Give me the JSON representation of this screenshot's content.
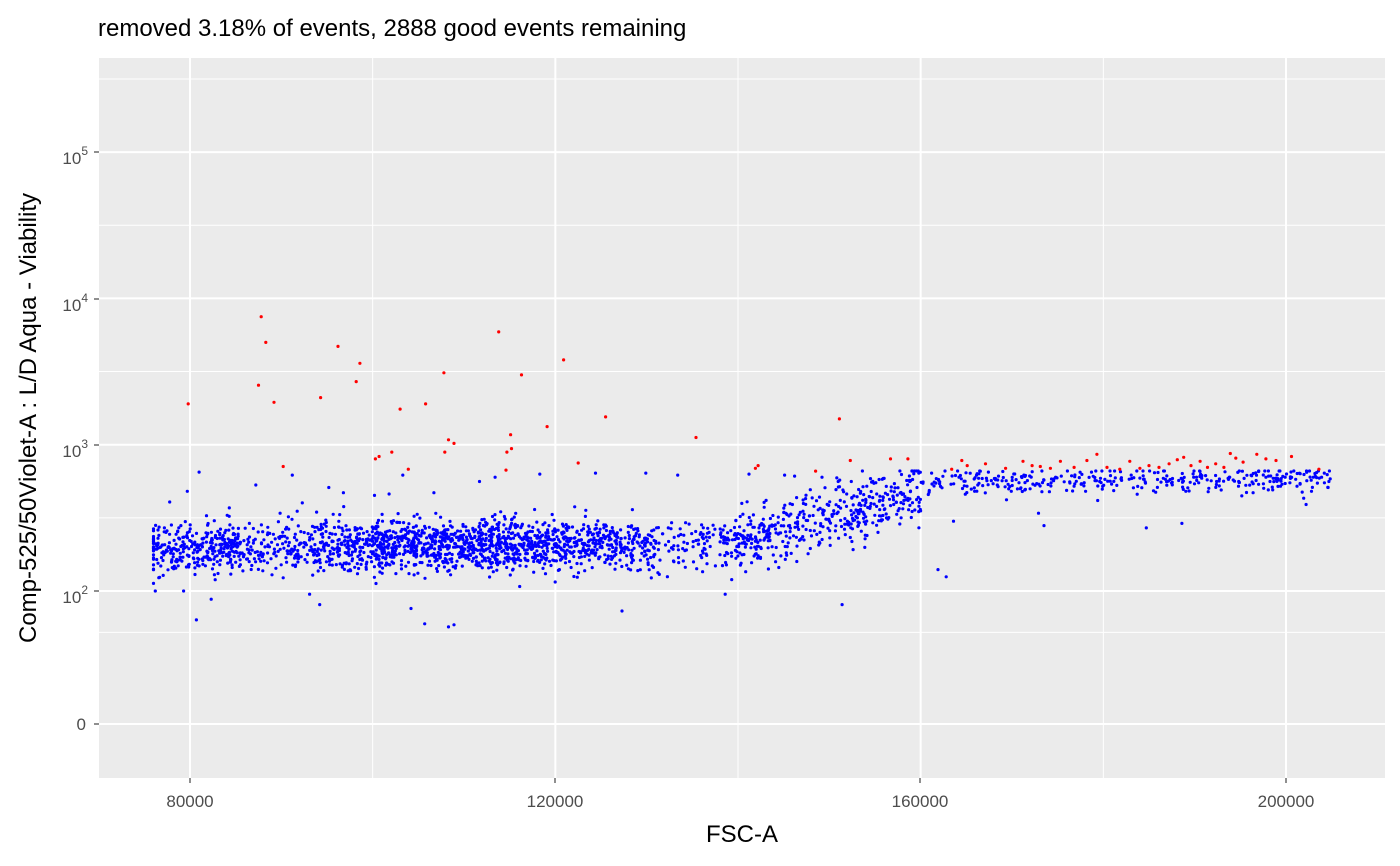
{
  "chart_data": {
    "type": "scatter",
    "title": "removed 3.18% of events, 2888 good events remaining",
    "xlabel": "FSC-A",
    "ylabel": "Comp-525/50Violet-A : L/D Aqua - Viability",
    "x_ticks": [
      "80000",
      "120000",
      "160000",
      "200000"
    ],
    "y_ticks": [
      {
        "label": "0",
        "base": "",
        "exp": ""
      },
      {
        "label": "10",
        "base": "10",
        "exp": "2"
      },
      {
        "label": "10",
        "base": "10",
        "exp": "3"
      },
      {
        "label": "10",
        "base": "10",
        "exp": "4"
      },
      {
        "label": "10",
        "base": "10",
        "exp": "5"
      }
    ],
    "x_range": [
      70000,
      210000
    ],
    "y_scale": "logicle (0, 10^2 … 10^5)",
    "grid": true,
    "legend": "none",
    "colors": {
      "panel": "#ebebeb",
      "grid": "#ffffff",
      "good": "#0000ff",
      "removed": "#ff0000"
    },
    "series": [
      {
        "status": "removed",
        "color": "#ff0000",
        "points": [
          [
            79800,
            1900
          ],
          [
            87800,
            7500
          ],
          [
            88300,
            5000
          ],
          [
            87500,
            2550
          ],
          [
            89200,
            1950
          ],
          [
            90200,
            710
          ],
          [
            94300,
            2100
          ],
          [
            96200,
            4700
          ],
          [
            98200,
            2700
          ],
          [
            98600,
            3600
          ],
          [
            100300,
            800
          ],
          [
            100700,
            830
          ],
          [
            102100,
            890
          ],
          [
            103000,
            1750
          ],
          [
            103900,
            680
          ],
          [
            105800,
            1900
          ],
          [
            107800,
            3100
          ],
          [
            107900,
            890
          ],
          [
            108300,
            1080
          ],
          [
            108900,
            1020
          ],
          [
            113800,
            5900
          ],
          [
            114600,
            670
          ],
          [
            114700,
            890
          ],
          [
            115200,
            940
          ],
          [
            115100,
            1170
          ],
          [
            116300,
            3000
          ],
          [
            119100,
            1330
          ],
          [
            120900,
            3800
          ],
          [
            122500,
            750
          ],
          [
            125500,
            1550
          ],
          [
            135400,
            1120
          ],
          [
            141900,
            690
          ],
          [
            142200,
            720
          ],
          [
            148500,
            660
          ],
          [
            151100,
            1500
          ],
          [
            152300,
            780
          ],
          [
            156700,
            800
          ],
          [
            158600,
            800
          ],
          [
            163400,
            680
          ],
          [
            164500,
            780
          ],
          [
            165100,
            720
          ],
          [
            167100,
            740
          ],
          [
            169300,
            690
          ],
          [
            171200,
            770
          ],
          [
            172200,
            720
          ],
          [
            173100,
            710
          ],
          [
            174200,
            690
          ],
          [
            175300,
            770
          ],
          [
            176800,
            700
          ],
          [
            178200,
            780
          ],
          [
            179300,
            860
          ],
          [
            180400,
            700
          ],
          [
            181800,
            680
          ],
          [
            182900,
            770
          ],
          [
            184000,
            690
          ],
          [
            185000,
            720
          ],
          [
            186100,
            700
          ],
          [
            187200,
            740
          ],
          [
            188100,
            790
          ],
          [
            188800,
            820
          ],
          [
            189600,
            720
          ],
          [
            190600,
            770
          ],
          [
            191400,
            700
          ],
          [
            192300,
            740
          ],
          [
            193200,
            700
          ],
          [
            193900,
            870
          ],
          [
            194500,
            810
          ],
          [
            195300,
            760
          ],
          [
            196800,
            860
          ],
          [
            197800,
            800
          ],
          [
            198900,
            780
          ],
          [
            200600,
            830
          ],
          [
            203600,
            680
          ]
        ]
      },
      {
        "status": "good",
        "color": "#0000ff",
        "summary": "2888 events; FSC-A about 76000–205000, Comp-525/50Violet-A mostly 100–300 below 140000 FSC-A, rising to about 500–650 above 160000 FSC-A",
        "points": [
          [
            76200,
            100
          ],
          [
            76500,
            155
          ],
          [
            76800,
            200
          ],
          [
            77200,
            270
          ],
          [
            78000,
            160
          ],
          [
            79000,
            280
          ],
          [
            79300,
            100
          ],
          [
            79700,
            480
          ],
          [
            80300,
            210
          ],
          [
            80700,
            62
          ],
          [
            81000,
            650
          ],
          [
            82500,
            180
          ],
          [
            83500,
            230
          ],
          [
            84300,
            370
          ],
          [
            86500,
            290
          ],
          [
            87200,
            530
          ],
          [
            91200,
            620
          ],
          [
            92300,
            400
          ],
          [
            93100,
            95
          ],
          [
            94200,
            80
          ],
          [
            95200,
            510
          ],
          [
            96800,
            470
          ],
          [
            100200,
            450
          ],
          [
            101800,
            460
          ],
          [
            103300,
            620
          ],
          [
            104200,
            75
          ],
          [
            105700,
            58
          ],
          [
            106700,
            470
          ],
          [
            108300,
            55
          ],
          [
            108900,
            57
          ],
          [
            111700,
            560
          ],
          [
            113400,
            600
          ],
          [
            118300,
            630
          ],
          [
            124400,
            640
          ],
          [
            127300,
            72
          ],
          [
            129900,
            640
          ],
          [
            133400,
            620
          ],
          [
            138600,
            95
          ],
          [
            141200,
            630
          ],
          [
            145100,
            620
          ],
          [
            149200,
            600
          ],
          [
            151400,
            80
          ],
          [
            152400,
            560
          ],
          [
            154100,
            520
          ],
          [
            155800,
            580
          ],
          [
            158800,
            560
          ],
          [
            159800,
            640
          ],
          [
            161200,
            640
          ],
          [
            161900,
            140
          ],
          [
            162800,
            125
          ],
          [
            163600,
            300
          ],
          [
            164200,
            600
          ],
          [
            167200,
            590
          ],
          [
            169400,
            420
          ],
          [
            171300,
            620
          ],
          [
            172900,
            340
          ],
          [
            173500,
            280
          ],
          [
            175400,
            610
          ],
          [
            176800,
            520
          ],
          [
            177900,
            550
          ],
          [
            179600,
            560
          ],
          [
            182000,
            570
          ],
          [
            184400,
            580
          ],
          [
            184700,
            270
          ],
          [
            186800,
            580
          ],
          [
            188600,
            290
          ],
          [
            190200,
            600
          ],
          [
            192400,
            560
          ],
          [
            194800,
            520
          ],
          [
            196400,
            470
          ],
          [
            197800,
            600
          ],
          [
            199400,
            520
          ],
          [
            201200,
            520
          ],
          [
            202200,
            390
          ],
          [
            203900,
            600
          ],
          [
            204700,
            560
          ]
        ]
      }
    ]
  }
}
